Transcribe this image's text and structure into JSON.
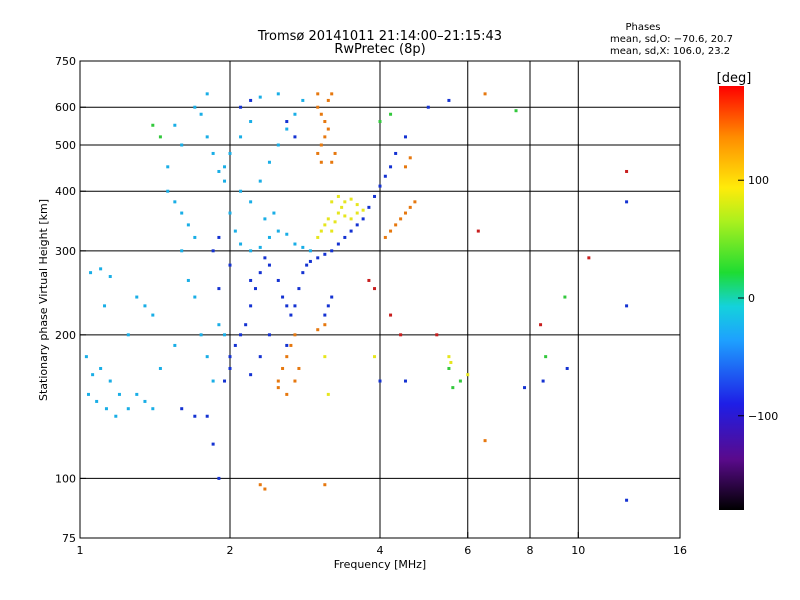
{
  "chart_data": {
    "type": "scatter",
    "title": "Tromsø 20141011 21:14:00–21:15:43",
    "subtitle": "RwPretec (8p)",
    "xlabel": "Frequency [MHz]",
    "ylabel": "Stationary phase Virtual Height [km]",
    "x_scale": "log",
    "y_scale": "log",
    "xlim": [
      1,
      16
    ],
    "ylim": [
      75,
      750
    ],
    "x_ticks": [
      1,
      2,
      4,
      6,
      8,
      10,
      16
    ],
    "y_ticks": [
      75,
      100,
      200,
      300,
      400,
      500,
      600,
      750
    ],
    "x_gridlines": [
      2,
      4,
      6,
      8,
      10
    ],
    "y_gridlines": [
      100,
      200,
      300,
      400,
      500,
      600
    ],
    "stats": {
      "heading": "Phases",
      "line_o": "mean, sd,O: −70.6, 20.7",
      "line_x": "mean, sd,X: 106.0, 23.2"
    },
    "colorbar": {
      "label": "[deg]",
      "range": [
        -180,
        180
      ],
      "ticks": [
        100,
        0,
        -100
      ],
      "tick_labels": [
        "100",
        "0",
        "−100"
      ]
    },
    "series": [
      {
        "points": [
          [
            1.03,
            180
          ],
          [
            1.06,
            165
          ],
          [
            1.1,
            170
          ],
          [
            1.15,
            160
          ],
          [
            1.2,
            150
          ],
          [
            1.04,
            150
          ],
          [
            1.08,
            145
          ],
          [
            1.13,
            140
          ],
          [
            1.18,
            135
          ],
          [
            1.25,
            140
          ],
          [
            1.3,
            150
          ],
          [
            1.35,
            145
          ],
          [
            1.4,
            140
          ],
          [
            1.05,
            270
          ],
          [
            1.1,
            275
          ],
          [
            1.15,
            265
          ],
          [
            1.3,
            240
          ],
          [
            1.35,
            230
          ],
          [
            1.4,
            220
          ],
          [
            1.5,
            400
          ],
          [
            1.55,
            380
          ],
          [
            1.6,
            360
          ],
          [
            1.65,
            340
          ],
          [
            1.7,
            320
          ],
          [
            1.5,
            450
          ],
          [
            1.6,
            500
          ],
          [
            1.55,
            550
          ],
          [
            1.7,
            600
          ],
          [
            1.8,
            640
          ],
          [
            1.75,
            580
          ],
          [
            1.8,
            520
          ],
          [
            1.85,
            480
          ],
          [
            1.9,
            440
          ],
          [
            1.95,
            420
          ],
          [
            1.6,
            300
          ],
          [
            1.65,
            260
          ],
          [
            1.7,
            240
          ],
          [
            1.75,
            200
          ],
          [
            1.8,
            180
          ],
          [
            1.9,
            210
          ],
          [
            2.0,
            360
          ],
          [
            2.05,
            330
          ],
          [
            2.1,
            310
          ],
          [
            2.2,
            300
          ],
          [
            2.3,
            305
          ],
          [
            2.4,
            320
          ],
          [
            2.5,
            330
          ],
          [
            2.6,
            325
          ],
          [
            2.7,
            310
          ],
          [
            2.8,
            305
          ],
          [
            2.9,
            300
          ],
          [
            2.1,
            400
          ],
          [
            2.2,
            380
          ],
          [
            2.3,
            420
          ],
          [
            2.4,
            460
          ],
          [
            2.5,
            500
          ],
          [
            2.6,
            540
          ],
          [
            2.7,
            580
          ],
          [
            2.8,
            620
          ],
          [
            2.3,
            630
          ],
          [
            2.5,
            640
          ],
          [
            2.2,
            560
          ],
          [
            2.1,
            520
          ],
          [
            2.0,
            480
          ],
          [
            1.95,
            450
          ],
          [
            2.35,
            350
          ],
          [
            2.45,
            360
          ],
          [
            1.45,
            170
          ],
          [
            1.55,
            190
          ],
          [
            1.95,
            200
          ],
          [
            1.85,
            160
          ],
          [
            1.25,
            200
          ],
          [
            1.12,
            230
          ]
        ],
        "color": "#19aee6"
      },
      {
        "points": [
          [
            1.6,
            140
          ],
          [
            1.7,
            135
          ],
          [
            1.8,
            135
          ],
          [
            1.85,
            118
          ],
          [
            1.9,
            100
          ],
          [
            1.95,
            160
          ],
          [
            2.0,
            180
          ],
          [
            2.05,
            190
          ],
          [
            2.1,
            200
          ],
          [
            2.15,
            210
          ],
          [
            2.2,
            230
          ],
          [
            2.25,
            250
          ],
          [
            2.3,
            270
          ],
          [
            2.35,
            290
          ],
          [
            2.4,
            280
          ],
          [
            2.5,
            260
          ],
          [
            2.55,
            240
          ],
          [
            2.6,
            230
          ],
          [
            2.65,
            220
          ],
          [
            2.7,
            230
          ],
          [
            2.75,
            250
          ],
          [
            2.8,
            270
          ],
          [
            2.85,
            280
          ],
          [
            2.9,
            285
          ],
          [
            3.0,
            290
          ],
          [
            3.1,
            295
          ],
          [
            3.2,
            300
          ],
          [
            3.3,
            310
          ],
          [
            3.4,
            320
          ],
          [
            3.5,
            330
          ],
          [
            3.6,
            340
          ],
          [
            3.7,
            350
          ],
          [
            3.8,
            370
          ],
          [
            3.9,
            390
          ],
          [
            4.0,
            410
          ],
          [
            4.1,
            430
          ],
          [
            4.2,
            450
          ],
          [
            4.3,
            480
          ],
          [
            4.5,
            520
          ],
          [
            3.1,
            220
          ],
          [
            3.15,
            230
          ],
          [
            3.2,
            240
          ],
          [
            2.1,
            600
          ],
          [
            2.2,
            620
          ],
          [
            1.85,
            300
          ],
          [
            1.9,
            320
          ],
          [
            2.0,
            280
          ],
          [
            1.9,
            250
          ],
          [
            2.2,
            260
          ],
          [
            2.4,
            200
          ],
          [
            2.6,
            190
          ],
          [
            2.0,
            170
          ],
          [
            2.2,
            165
          ],
          [
            2.3,
            180
          ],
          [
            2.6,
            560
          ],
          [
            2.7,
            520
          ],
          [
            5.0,
            600
          ],
          [
            5.5,
            620
          ],
          [
            4.0,
            160
          ],
          [
            4.5,
            160
          ],
          [
            12.5,
            90
          ],
          [
            12.5,
            230
          ],
          [
            12.5,
            380
          ],
          [
            8.5,
            160
          ],
          [
            9.5,
            170
          ],
          [
            7.8,
            155
          ]
        ],
        "color": "#1432d2"
      },
      {
        "points": [
          [
            2.5,
            160
          ],
          [
            2.55,
            170
          ],
          [
            2.6,
            180
          ],
          [
            2.65,
            190
          ],
          [
            2.7,
            200
          ],
          [
            2.5,
            155
          ],
          [
            2.6,
            150
          ],
          [
            2.7,
            160
          ],
          [
            2.75,
            170
          ],
          [
            2.3,
            97
          ],
          [
            2.35,
            95
          ],
          [
            3.1,
            97
          ],
          [
            3.0,
            600
          ],
          [
            3.05,
            580
          ],
          [
            3.1,
            560
          ],
          [
            3.15,
            540
          ],
          [
            3.1,
            520
          ],
          [
            3.05,
            500
          ],
          [
            3.0,
            480
          ],
          [
            3.05,
            460
          ],
          [
            3.15,
            620
          ],
          [
            3.2,
            640
          ],
          [
            3.0,
            640
          ],
          [
            3.2,
            460
          ],
          [
            3.25,
            480
          ],
          [
            4.2,
            330
          ],
          [
            4.3,
            340
          ],
          [
            4.4,
            350
          ],
          [
            4.5,
            360
          ],
          [
            4.6,
            370
          ],
          [
            4.7,
            380
          ],
          [
            4.1,
            320
          ],
          [
            4.5,
            450
          ],
          [
            4.6,
            470
          ],
          [
            6.5,
            120
          ],
          [
            6.5,
            640
          ],
          [
            3.1,
            210
          ],
          [
            3.0,
            205
          ]
        ],
        "color": "#e6780f"
      },
      {
        "points": [
          [
            3.0,
            320
          ],
          [
            3.05,
            330
          ],
          [
            3.1,
            340
          ],
          [
            3.15,
            350
          ],
          [
            3.2,
            330
          ],
          [
            3.25,
            345
          ],
          [
            3.3,
            360
          ],
          [
            3.35,
            370
          ],
          [
            3.4,
            355
          ],
          [
            3.5,
            350
          ],
          [
            3.6,
            360
          ],
          [
            3.7,
            365
          ],
          [
            3.2,
            380
          ],
          [
            3.3,
            390
          ],
          [
            3.4,
            380
          ],
          [
            3.5,
            385
          ],
          [
            3.6,
            375
          ],
          [
            3.1,
            180
          ],
          [
            3.15,
            150
          ],
          [
            5.5,
            180
          ],
          [
            5.55,
            175
          ],
          [
            3.9,
            180
          ],
          [
            6.0,
            165
          ]
        ],
        "color": "#e6e61e"
      },
      {
        "points": [
          [
            1.4,
            550
          ],
          [
            1.45,
            520
          ],
          [
            4.0,
            560
          ],
          [
            4.2,
            580
          ],
          [
            5.6,
            155
          ],
          [
            5.5,
            170
          ],
          [
            5.8,
            160
          ],
          [
            7.5,
            590
          ],
          [
            9.4,
            240
          ],
          [
            8.6,
            180
          ]
        ],
        "color": "#32c83c"
      },
      {
        "points": [
          [
            3.8,
            260
          ],
          [
            3.9,
            250
          ],
          [
            4.2,
            220
          ],
          [
            4.4,
            200
          ],
          [
            5.2,
            200
          ],
          [
            6.3,
            330
          ],
          [
            8.4,
            210
          ],
          [
            10.5,
            290
          ],
          [
            12.5,
            440
          ]
        ],
        "color": "#c81e1e"
      }
    ]
  }
}
